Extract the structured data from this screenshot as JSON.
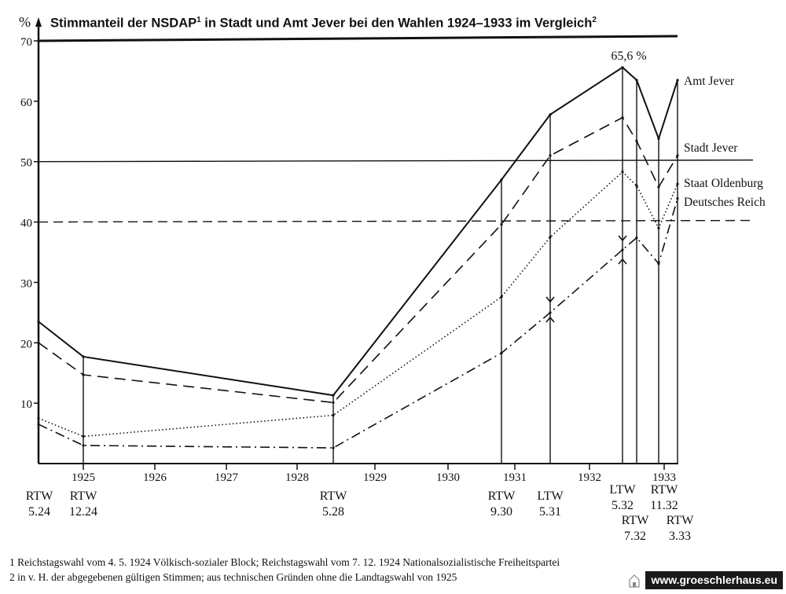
{
  "title_main": "Stimmanteil der NSDAP",
  "title_fn_mark": "1",
  "title_rest": " in Stadt und Amt Jever bei den Wahlen 1924–1933 im Vergleich",
  "title_fn_mark2": "2",
  "y_unit": "%",
  "footnotes": [
    "1  Reichstagswahl vom 4. 5. 1924 Völkisch-sozialer Block; Reichstagswahl vom 7. 12. 1924 Nationalsozialistische Freiheitspartei",
    "2  in v. H. der abgegebenen gültigen Stimmen; aus technischen Gründen ohne die Landtagswahl von 1925"
  ],
  "watermark": "www.groeschlerhaus.eu",
  "chart_data": {
    "type": "line",
    "title": "Stimmanteil der NSDAP¹ in Stadt und Amt Jever bei den Wahlen 1924–1933 im Vergleich²",
    "ylabel": "%",
    "ylim": [
      0,
      70
    ],
    "yticks": [
      10,
      20,
      30,
      40,
      50,
      60,
      70
    ],
    "year_ticks": [
      "1925",
      "1926",
      "1927",
      "1928",
      "1929",
      "1930",
      "1931",
      "1932",
      "1933"
    ],
    "elections": [
      {
        "label": [
          "RTW",
          "5.24"
        ]
      },
      {
        "label": [
          "RTW",
          "12.24"
        ]
      },
      {
        "label": [
          "RTW",
          "5.28"
        ]
      },
      {
        "label": [
          "RTW",
          "9.30"
        ]
      },
      {
        "label": [
          "LTW",
          "5.31"
        ]
      },
      {
        "label": [
          "LTW",
          "5.32"
        ]
      },
      {
        "label": [
          "RTW",
          "7.32"
        ]
      },
      {
        "label": [
          "RTW",
          "11.32"
        ]
      },
      {
        "label": [
          "RTW",
          "3.33"
        ]
      }
    ],
    "series": [
      {
        "name": "Amt Jever",
        "style": "solid",
        "values": [
          23.5,
          17.7,
          11.3,
          47,
          57.8,
          65.6,
          63.5,
          53.8,
          63.5
        ]
      },
      {
        "name": "Stadt Jever",
        "style": "dashed",
        "values": [
          20,
          14.7,
          10.1,
          39.6,
          51,
          57.3,
          53.4,
          45.8,
          51
        ]
      },
      {
        "name": "Staat Oldenburg",
        "style": "dotted",
        "values": [
          7.5,
          4.5,
          8,
          27.6,
          37.5,
          48.3,
          46,
          39,
          46.3
        ]
      },
      {
        "name": "Deutsches Reich",
        "style": "dashdot",
        "values": [
          6.5,
          3,
          2.6,
          18.3,
          25,
          35.4,
          37.4,
          33.1,
          43.9
        ]
      }
    ],
    "reference_lines": [
      {
        "value": 50,
        "style": "solid"
      },
      {
        "value": 40,
        "style": "dashed"
      }
    ],
    "peak_annotation": "65,6 %"
  }
}
